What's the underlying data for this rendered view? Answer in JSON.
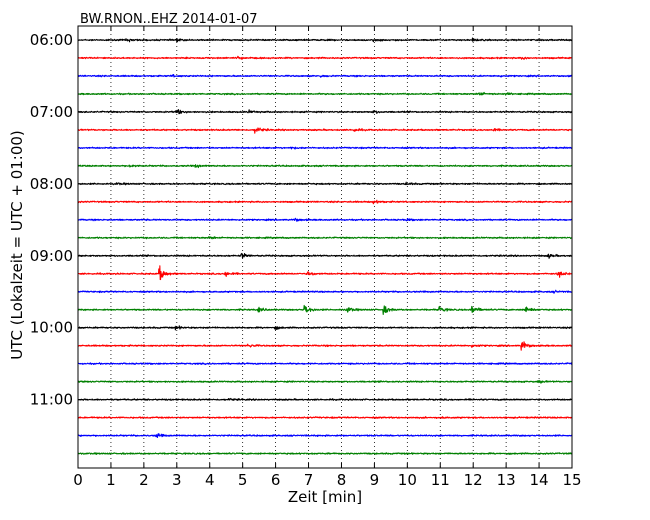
{
  "chart_data": {
    "type": "line",
    "title": "BW.RNON..EHZ 2014-01-07",
    "xlabel": "Zeit  [min]",
    "ylabel": "UTC (Lokalzeit = UTC + 01:00)",
    "xlim": [
      0,
      15
    ],
    "xticks": [
      0,
      1,
      2,
      3,
      4,
      5,
      6,
      7,
      8,
      9,
      10,
      11,
      12,
      13,
      14,
      15
    ],
    "xgrid": "dotted-vertical",
    "row_minutes": 15,
    "start_time": "06:00",
    "row_count": 24,
    "color_cycle": [
      "#000000",
      "#ff0000",
      "#0000ff",
      "#008000"
    ],
    "yticks": [
      {
        "label": "06:00",
        "row": 0
      },
      {
        "label": "07:00",
        "row": 4
      },
      {
        "label": "08:00",
        "row": 8
      },
      {
        "label": "09:00",
        "row": 12
      },
      {
        "label": "10:00",
        "row": 16
      },
      {
        "label": "11:00",
        "row": 20
      }
    ],
    "series": [
      {
        "values": [
          [
            1.5,
            0.5
          ],
          [
            3.0,
            0.4
          ],
          [
            9.0,
            0.4
          ],
          [
            12.0,
            0.4
          ]
        ]
      },
      {
        "values": [
          [
            4.9,
            0.6
          ],
          [
            13.5,
            0.4
          ]
        ]
      },
      {
        "values": [
          [
            2.9,
            0.3
          ],
          [
            7.4,
            0.3
          ],
          [
            12.8,
            0.3
          ]
        ]
      },
      {
        "values": [
          [
            12.2,
            0.7
          ],
          [
            13.0,
            0.3
          ]
        ]
      },
      {
        "values": [
          [
            3.0,
            1.0
          ],
          [
            5.2,
            0.5
          ],
          [
            9.0,
            0.5
          ]
        ]
      },
      {
        "values": [
          [
            5.4,
            1.4
          ],
          [
            8.4,
            0.5
          ],
          [
            12.6,
            0.5
          ]
        ]
      },
      {
        "values": [
          [
            6.5,
            0.3
          ]
        ]
      },
      {
        "values": [
          [
            1.6,
            0.5
          ],
          [
            3.6,
            0.5
          ]
        ]
      },
      {
        "values": [
          [
            1.2,
            0.3
          ],
          [
            10.0,
            0.4
          ]
        ]
      },
      {
        "values": [
          [
            9.0,
            0.8
          ]
        ]
      },
      {
        "values": [
          [
            6.6,
            0.6
          ],
          [
            10.0,
            0.3
          ]
        ]
      },
      {
        "values": [
          [
            4.0,
            0.4
          ]
        ]
      },
      {
        "values": [
          [
            5.0,
            0.9
          ],
          [
            14.3,
            0.7
          ]
        ]
      },
      {
        "values": [
          [
            2.5,
            2.6
          ],
          [
            4.5,
            1.0
          ],
          [
            7.0,
            1.0
          ],
          [
            14.6,
            1.3
          ]
        ]
      },
      {
        "values": [
          [
            14.5,
            0.3
          ]
        ]
      },
      {
        "values": [
          [
            5.5,
            0.8
          ],
          [
            6.9,
            2.0
          ],
          [
            8.2,
            1.0
          ],
          [
            9.3,
            1.6
          ],
          [
            11.0,
            1.2
          ],
          [
            12.0,
            1.8
          ],
          [
            13.6,
            1.5
          ]
        ]
      },
      {
        "values": [
          [
            3.0,
            0.6
          ],
          [
            6.0,
            0.5
          ]
        ]
      },
      {
        "values": [
          [
            5.2,
            0.7
          ],
          [
            12.0,
            0.5
          ],
          [
            13.5,
            2.0
          ]
        ]
      },
      {
        "values": [
          [
            15.0,
            0.6
          ]
        ]
      },
      {
        "values": [
          [
            14.0,
            0.5
          ]
        ]
      },
      {
        "values": [
          [
            4.6,
            0.3
          ]
        ]
      },
      {
        "values": [
          [
            11.0,
            0.3
          ]
        ]
      },
      {
        "values": [
          [
            2.4,
            0.8
          ]
        ]
      },
      {
        "values": []
      }
    ]
  }
}
